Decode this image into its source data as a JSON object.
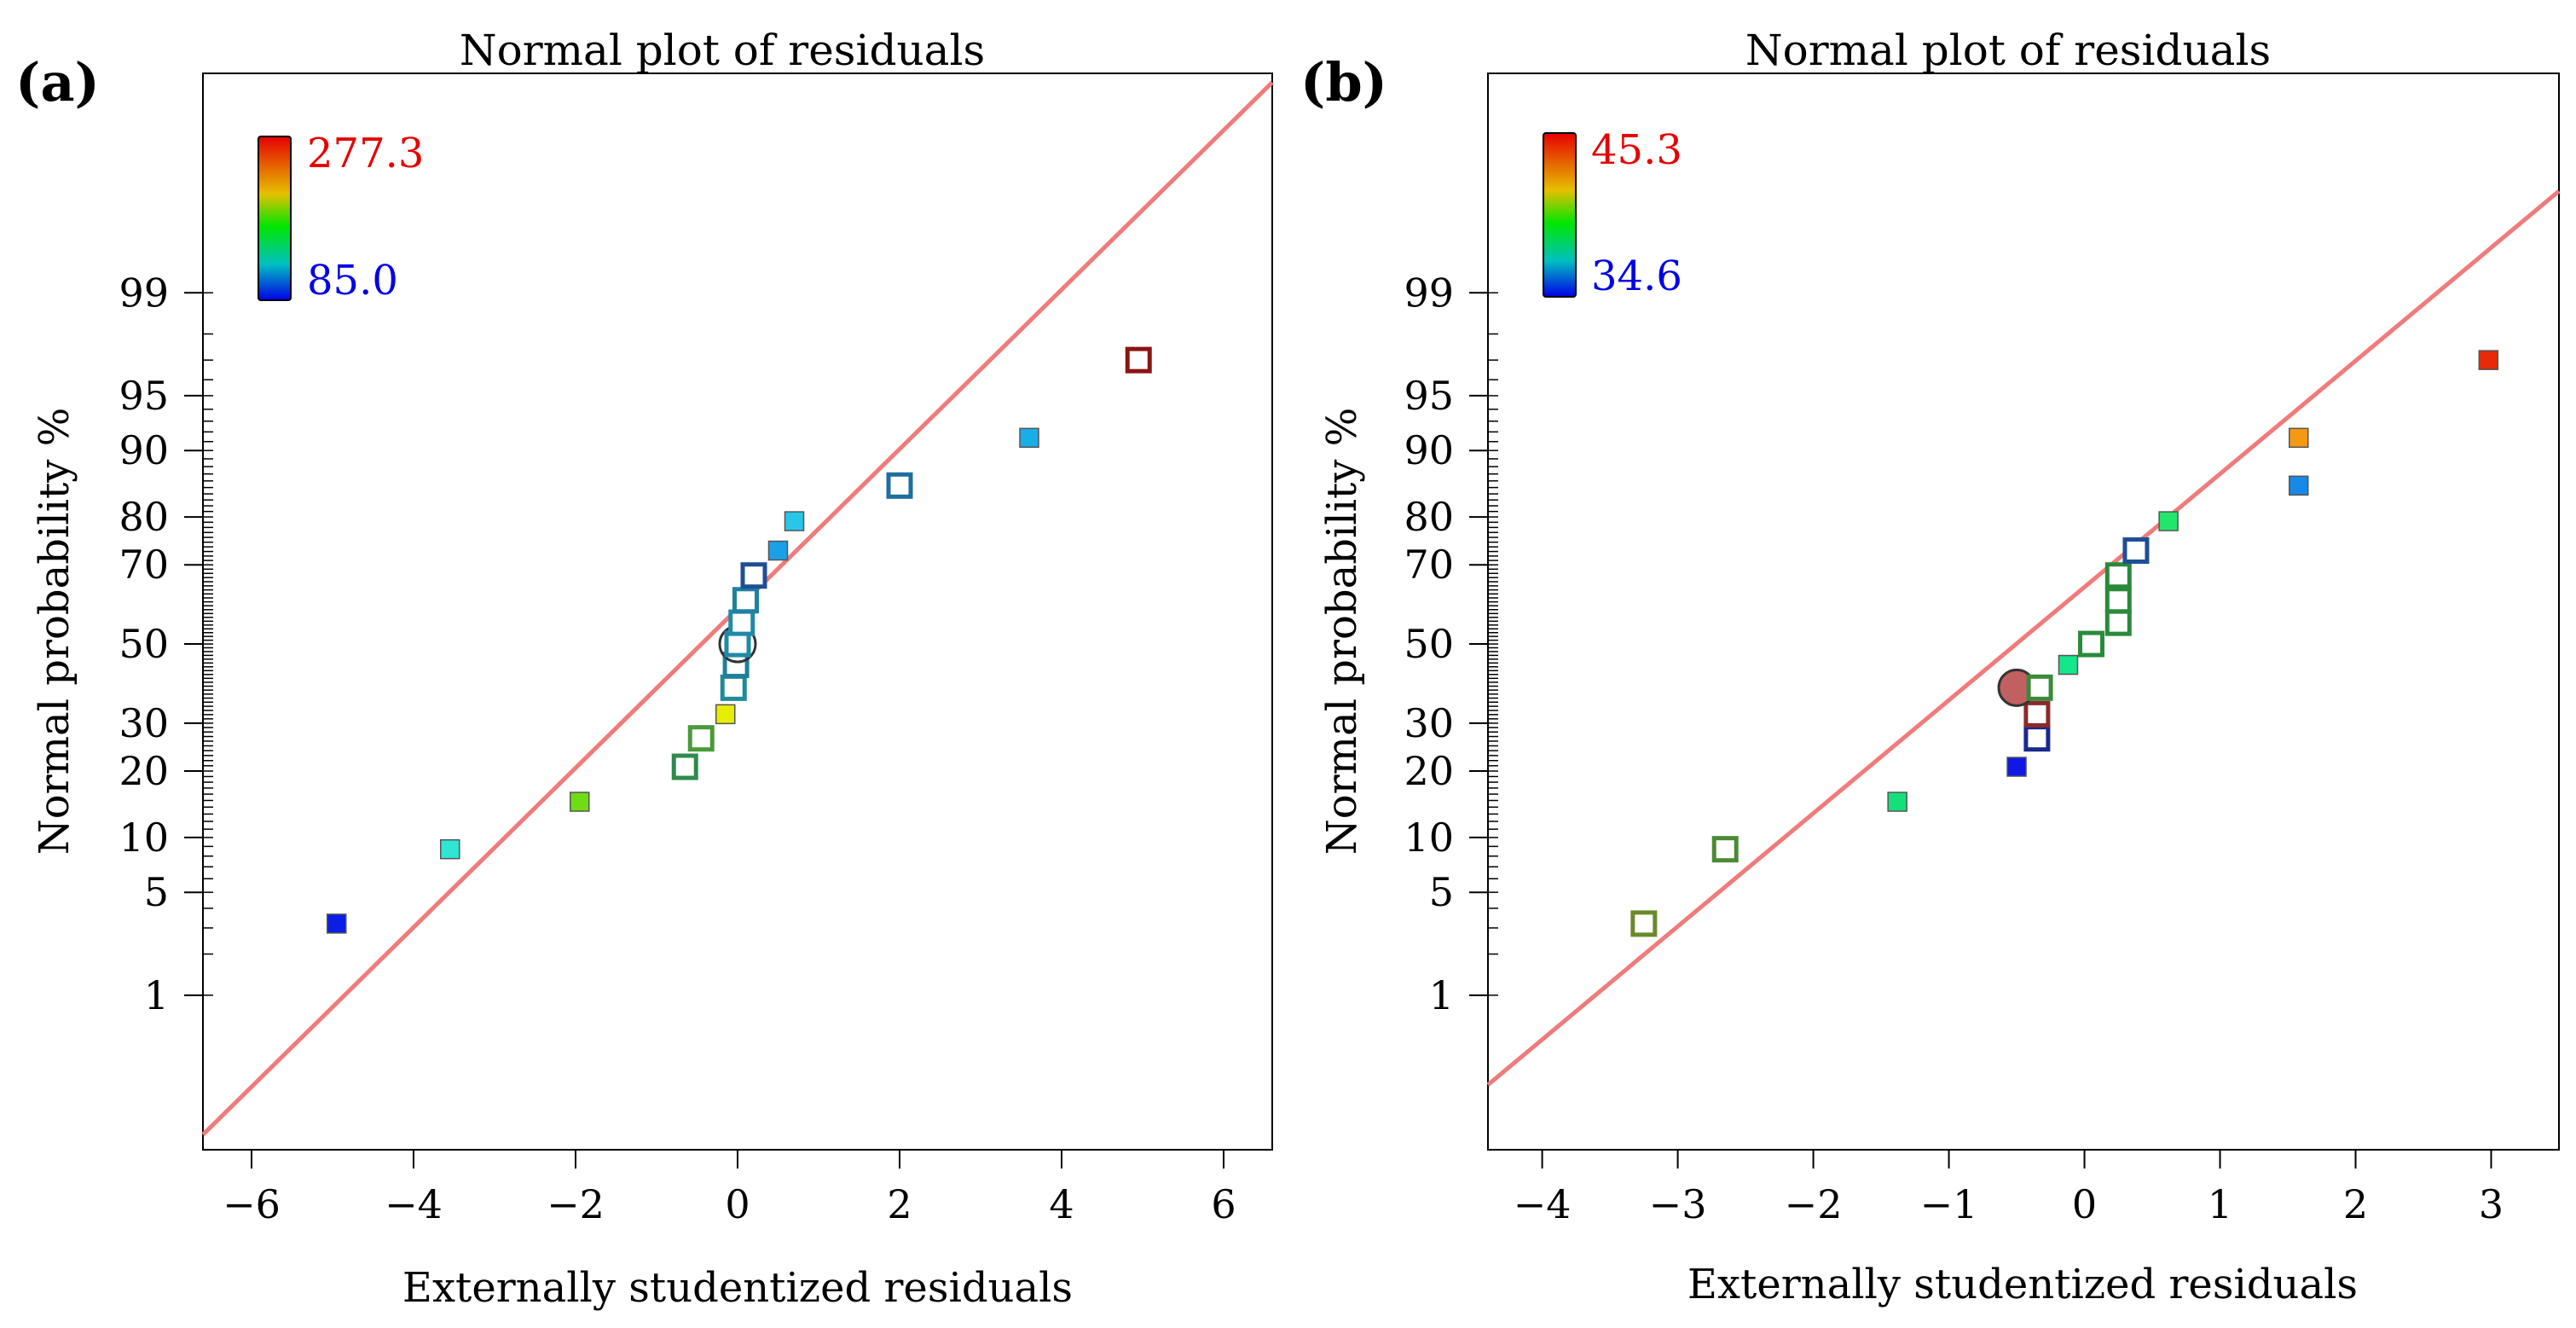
{
  "chart_data": [
    {
      "panel_label": "(a)",
      "type": "scatter",
      "title": "Normal plot of residuals",
      "xlabel": "Externally studentized residuals",
      "ylabel": "Normal probability %",
      "xlim": [
        -6.6,
        6.6
      ],
      "xticks": [
        -6,
        -4,
        -2,
        0,
        2,
        4,
        6
      ],
      "xtick_labels": [
        "−6",
        "−4",
        "−2",
        "0",
        "2",
        "4",
        "6"
      ],
      "yticks": [
        1,
        5,
        10,
        20,
        30,
        50,
        70,
        80,
        90,
        95,
        99
      ],
      "ytick_labels": [
        "1",
        "5",
        "10",
        "20",
        "30",
        "50",
        "70",
        "80",
        "90",
        "95",
        "99"
      ],
      "color_scale": {
        "max_label": "277.3",
        "min_label": "85.0",
        "max_color": "#e60000",
        "min_color": "#0000e6"
      },
      "reference_line": {
        "x": [
          -6.6,
          6.6
        ],
        "y_z": [
          -3.25,
          3.72
        ],
        "color": "#f08080"
      },
      "points": [
        {
          "x": -4.95,
          "p": 3.2,
          "color": "#0a1ee6",
          "style": "filled",
          "size": "small"
        },
        {
          "x": -3.55,
          "p": 8.7,
          "color": "#2fe6d2",
          "style": "filled",
          "size": "small"
        },
        {
          "x": -1.95,
          "p": 14.8,
          "color": "#6fdc14",
          "style": "filled",
          "size": "small"
        },
        {
          "x": -0.65,
          "p": 20.8,
          "color": "#2e8a4e",
          "style": "hollow",
          "size": "small"
        },
        {
          "x": -0.45,
          "p": 26.6,
          "color": "#4a9a3a",
          "style": "hollow",
          "size": "small"
        },
        {
          "x": -0.15,
          "p": 32.1,
          "color": "#e6ee00",
          "style": "filled",
          "size": "small"
        },
        {
          "x": -0.05,
          "p": 38.6,
          "color": "#1f8a9a",
          "style": "hollow",
          "size": "small"
        },
        {
          "x": -0.02,
          "p": 44.5,
          "color": "#1f7e9a",
          "style": "hollow",
          "size": "small"
        },
        {
          "x": 0.0,
          "p": 50.0,
          "color": "#444444",
          "style": "circle",
          "size": "large"
        },
        {
          "x": 0.0,
          "p": 50.0,
          "color": "#1f8aa6",
          "style": "hollow",
          "size": "small"
        },
        {
          "x": 0.05,
          "p": 55.6,
          "color": "#1f8aa6",
          "style": "hollow",
          "size": "small"
        },
        {
          "x": 0.1,
          "p": 61.4,
          "color": "#1f80a0",
          "style": "hollow",
          "size": "small"
        },
        {
          "x": 0.2,
          "p": 67.5,
          "color": "#1e4f96",
          "style": "hollow",
          "size": "small"
        },
        {
          "x": 0.5,
          "p": 73.2,
          "color": "#1aa0e6",
          "style": "filled",
          "size": "small"
        },
        {
          "x": 0.7,
          "p": 79.2,
          "color": "#28c6e8",
          "style": "filled",
          "size": "small"
        },
        {
          "x": 2.0,
          "p": 85.3,
          "color": "#1e6ea0",
          "style": "hollow",
          "size": "small"
        },
        {
          "x": 3.6,
          "p": 91.4,
          "color": "#18aee6",
          "style": "filled",
          "size": "small"
        },
        {
          "x": 4.95,
          "p": 97.0,
          "color": "#8a1414",
          "style": "hollow",
          "size": "small"
        }
      ]
    },
    {
      "panel_label": "(b)",
      "type": "scatter",
      "title": "Normal plot of residuals",
      "xlabel": "Externally studentized residuals",
      "ylabel": "Normal probability %",
      "xlim": [
        -4.4,
        3.5
      ],
      "xticks": [
        -4,
        -3,
        -2,
        -1,
        0,
        1,
        2,
        3
      ],
      "xtick_labels": [
        "−4",
        "−3",
        "−2",
        "−1",
        "0",
        "1",
        "2",
        "3"
      ],
      "yticks": [
        1,
        5,
        10,
        20,
        30,
        50,
        70,
        80,
        90,
        95,
        99
      ],
      "ytick_labels": [
        "1",
        "5",
        "10",
        "20",
        "30",
        "50",
        "70",
        "80",
        "90",
        "95",
        "99"
      ],
      "color_scale": {
        "max_label": "45.3",
        "min_label": "34.6",
        "max_color": "#e60000",
        "min_color": "#0000e6"
      },
      "reference_line": {
        "x": [
          -4.4,
          3.5
        ],
        "y_z": [
          -2.92,
          3.0
        ],
        "color": "#f08080"
      },
      "points": [
        {
          "x": -3.25,
          "p": 3.2,
          "color": "#6a8a2a",
          "style": "hollow",
          "size": "small"
        },
        {
          "x": -2.65,
          "p": 8.7,
          "color": "#4a8a34",
          "style": "hollow",
          "size": "small"
        },
        {
          "x": -1.38,
          "p": 14.8,
          "color": "#14e07a",
          "style": "filled",
          "size": "small"
        },
        {
          "x": -0.5,
          "p": 20.8,
          "color": "#1018e6",
          "style": "filled",
          "size": "small"
        },
        {
          "x": -0.35,
          "p": 26.6,
          "color": "#1a2a8a",
          "style": "hollow",
          "size": "small"
        },
        {
          "x": -0.35,
          "p": 32.1,
          "color": "#8a2a2a",
          "style": "hollow",
          "size": "small"
        },
        {
          "x": -0.5,
          "p": 38.6,
          "color": "#c06060",
          "style": "circle",
          "size": "large"
        },
        {
          "x": -0.33,
          "p": 38.6,
          "color": "#3a8a3a",
          "style": "hollow",
          "size": "small"
        },
        {
          "x": -0.12,
          "p": 44.5,
          "color": "#14e68a",
          "style": "filled",
          "size": "small"
        },
        {
          "x": 0.05,
          "p": 50.0,
          "color": "#2a8a3a",
          "style": "hollow",
          "size": "small"
        },
        {
          "x": 0.25,
          "p": 55.6,
          "color": "#2a8a3a",
          "style": "hollow",
          "size": "small"
        },
        {
          "x": 0.25,
          "p": 61.4,
          "color": "#2a8a3a",
          "style": "hollow",
          "size": "small"
        },
        {
          "x": 0.25,
          "p": 67.5,
          "color": "#2a8a3a",
          "style": "hollow",
          "size": "small"
        },
        {
          "x": 0.38,
          "p": 73.2,
          "color": "#1e4f96",
          "style": "hollow",
          "size": "small"
        },
        {
          "x": 0.62,
          "p": 79.2,
          "color": "#22e66a",
          "style": "filled",
          "size": "small"
        },
        {
          "x": 1.58,
          "p": 85.3,
          "color": "#168ae6",
          "style": "filled",
          "size": "small"
        },
        {
          "x": 1.58,
          "p": 91.4,
          "color": "#f59a10",
          "style": "filled",
          "size": "small"
        },
        {
          "x": 2.98,
          "p": 97.0,
          "color": "#e62a0a",
          "style": "filled",
          "size": "small"
        }
      ]
    }
  ]
}
